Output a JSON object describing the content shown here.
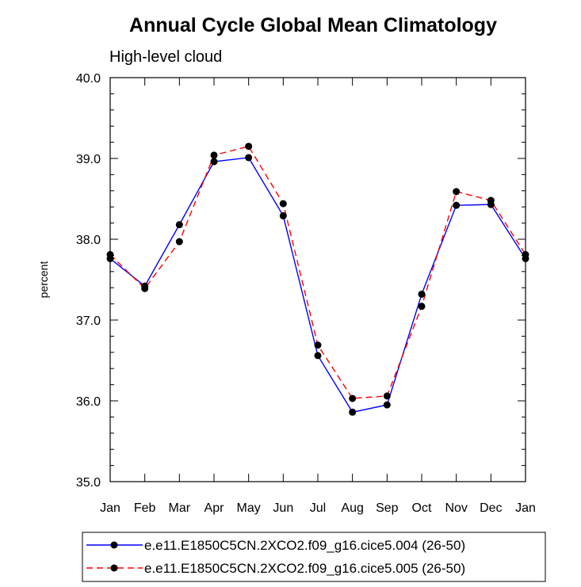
{
  "chart_data": {
    "type": "line",
    "title": "Annual Cycle Global Mean Climatology",
    "subtitle": "High-level cloud",
    "xlabel": "",
    "ylabel": "percent",
    "categories": [
      "Jan",
      "Feb",
      "Mar",
      "Apr",
      "May",
      "Jun",
      "Jul",
      "Aug",
      "Sep",
      "Oct",
      "Nov",
      "Dec",
      "Jan"
    ],
    "ylim": [
      35.0,
      40.0
    ],
    "yticks": [
      "35.0",
      "36.0",
      "37.0",
      "38.0",
      "39.0",
      "40.0"
    ],
    "grid": false,
    "legend_position": "bottom",
    "series": [
      {
        "name": "e.e11.E1850C5CN.2XCO2.f09_g16.cice5.004 (26-50)",
        "color": "#0000ff",
        "style": "solid",
        "values": [
          37.76,
          37.42,
          38.18,
          38.96,
          39.01,
          38.29,
          36.56,
          35.86,
          35.95,
          37.32,
          38.42,
          38.43,
          37.76
        ]
      },
      {
        "name": "e.e11.E1850C5CN.2XCO2.f09_g16.cice5.005 (26-50)",
        "color": "#ff0000",
        "style": "dashed",
        "values": [
          37.81,
          37.39,
          37.97,
          39.04,
          39.15,
          38.44,
          36.69,
          36.03,
          36.06,
          37.17,
          38.59,
          38.48,
          37.81
        ]
      }
    ]
  }
}
